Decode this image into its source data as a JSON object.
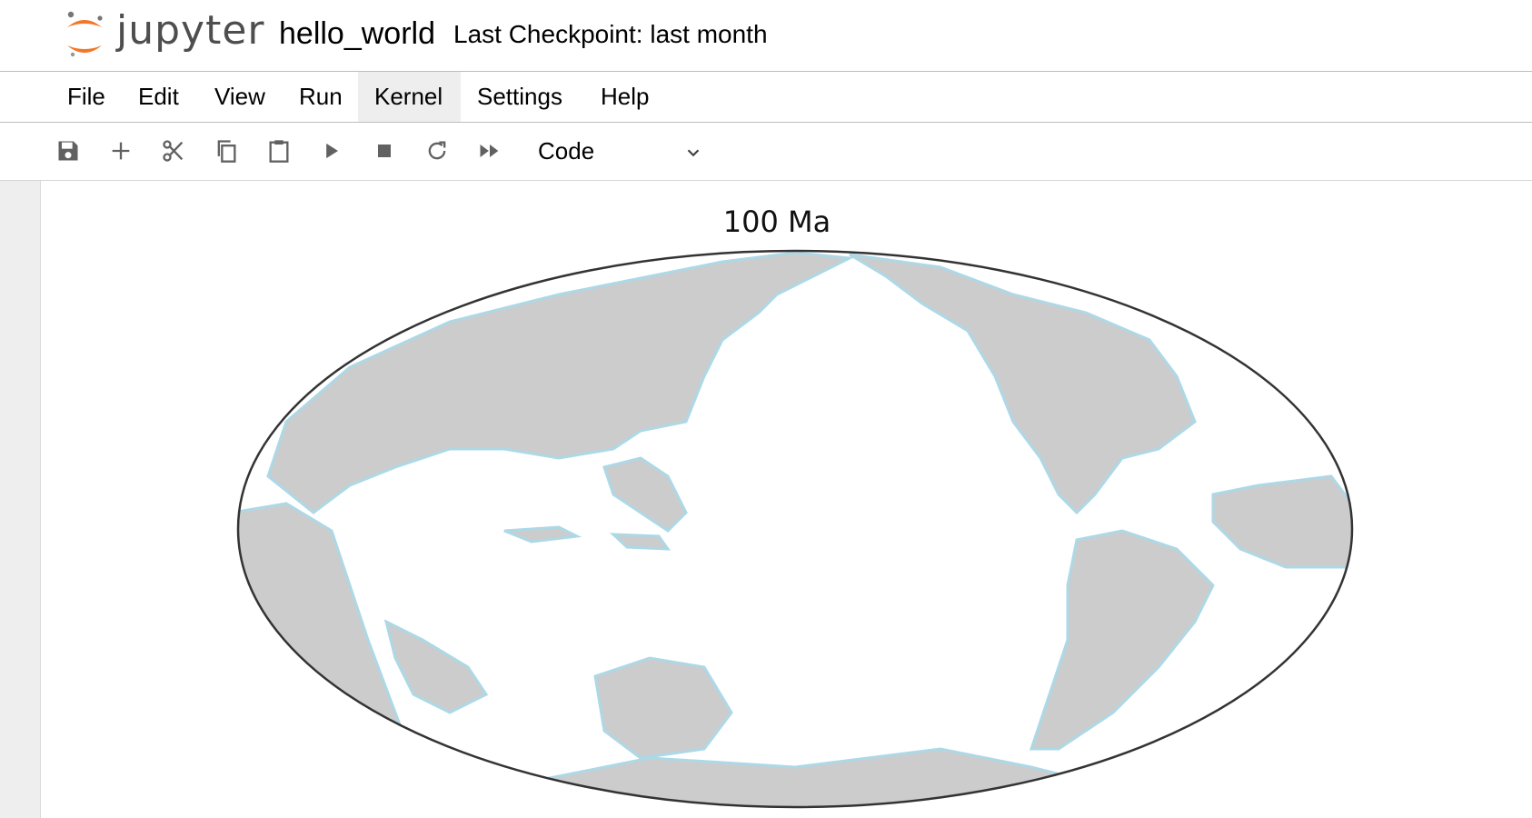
{
  "app": {
    "logo_text": "jupyter",
    "notebook_name": "hello_world",
    "checkpoint": "Last Checkpoint: last month"
  },
  "menu": {
    "items": [
      {
        "label": "File"
      },
      {
        "label": "Edit"
      },
      {
        "label": "View"
      },
      {
        "label": "Run"
      },
      {
        "label": "Kernel",
        "active": true
      },
      {
        "label": "Settings"
      },
      {
        "label": "Help"
      }
    ]
  },
  "toolbar": {
    "buttons": [
      "save-icon",
      "plus-icon",
      "scissors-icon",
      "copy-icon",
      "paste-icon",
      "play-icon",
      "stop-icon",
      "restart-icon",
      "fast-forward-icon"
    ],
    "cell_type": "Code"
  },
  "output": {
    "plot_title": "100 Ma"
  },
  "colors": {
    "land": "#cccccc",
    "coastline": "#add8e6",
    "ocean": "#ffffff",
    "accent_orange": "#f37726"
  }
}
